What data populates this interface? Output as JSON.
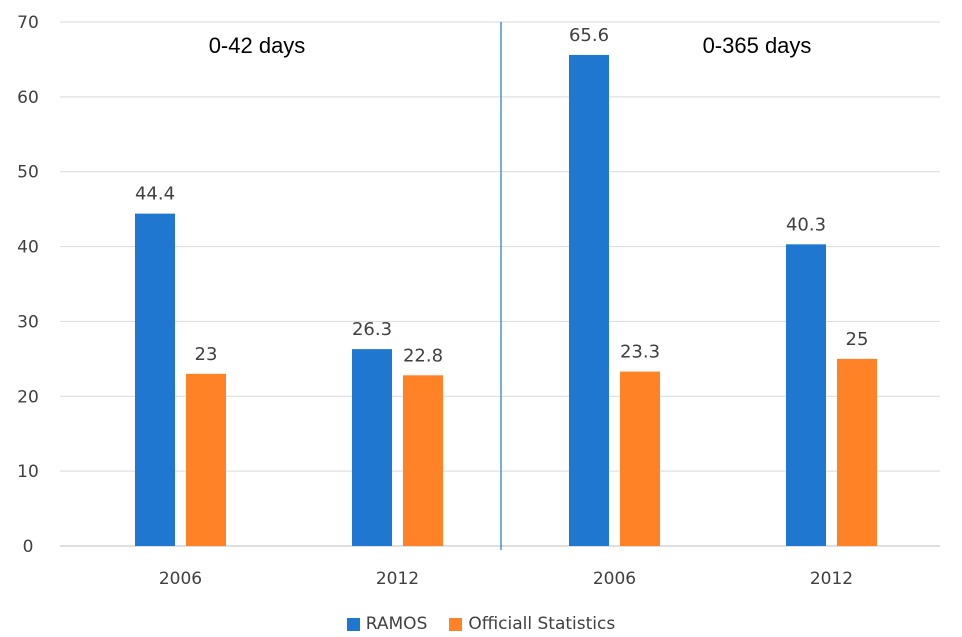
{
  "chart_data": {
    "type": "bar",
    "categories": [
      "2006",
      "2012",
      "2006",
      "2012"
    ],
    "groups": [
      {
        "label": "0-42 days",
        "categories": [
          "2006",
          "2012"
        ]
      },
      {
        "label": "0-365 days",
        "categories": [
          "2006",
          "2012"
        ]
      }
    ],
    "series": [
      {
        "name": "RAMOS",
        "color": "#1f77d0",
        "values": [
          44.4,
          26.3,
          65.6,
          40.3
        ]
      },
      {
        "name": "Officiall Statistics",
        "color": "#ff8226",
        "values": [
          23,
          22.8,
          23.3,
          25
        ]
      }
    ],
    "data_labels": {
      "RAMOS": [
        "44.4",
        "26.3",
        "65.6",
        "40.3"
      ],
      "Officiall Statistics": [
        "23",
        "22.8",
        "23.3",
        "25"
      ]
    },
    "yticks": [
      "0",
      "10",
      "20",
      "30",
      "40",
      "50",
      "60",
      "70"
    ],
    "ylim": [
      0,
      70
    ],
    "grid": true,
    "legend_position": "bottom",
    "divider_color": "#1f77d0"
  }
}
